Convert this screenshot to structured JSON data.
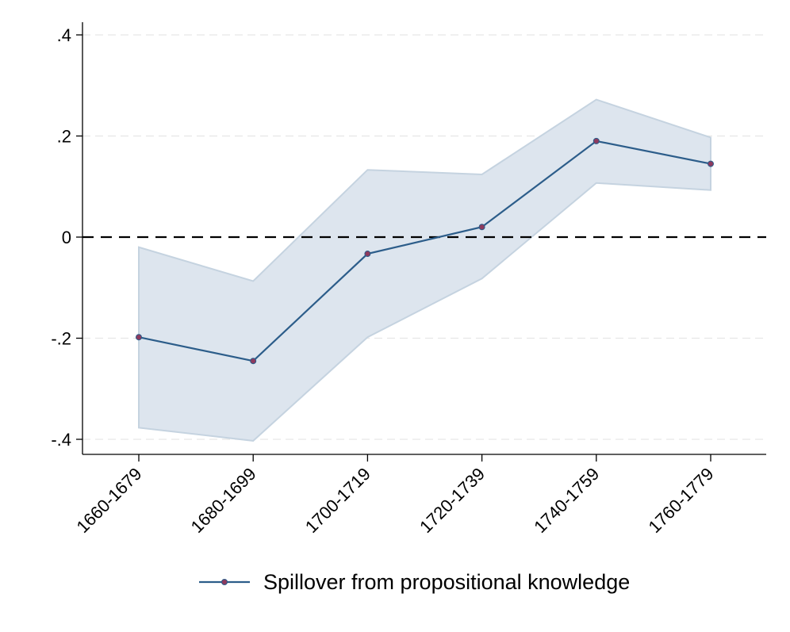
{
  "chart_data": {
    "type": "line",
    "title": "",
    "xlabel": "",
    "ylabel": "",
    "categories": [
      "1660-1679",
      "1680-1699",
      "1700-1719",
      "1720-1739",
      "1740-1759",
      "1760-1779"
    ],
    "series": [
      {
        "name": "Spillover from propositional knowledge",
        "values": [
          -0.198,
          -0.245,
          -0.033,
          0.02,
          0.19,
          0.145
        ],
        "ci_lower": [
          -0.377,
          -0.403,
          -0.198,
          -0.082,
          0.107,
          0.093
        ],
        "ci_upper": [
          -0.02,
          -0.087,
          0.133,
          0.124,
          0.272,
          0.197
        ],
        "line_color": "#2c5d8a",
        "marker_color": "#8e3a5e",
        "band_color": "#dde5ee"
      }
    ],
    "ylim": [
      -0.43,
      0.43
    ],
    "yticks": [
      {
        "value": 0.4,
        "label": ".4"
      },
      {
        "value": 0.2,
        "label": ".2"
      },
      {
        "value": 0,
        "label": "0"
      },
      {
        "value": -0.2,
        "label": "-.2"
      },
      {
        "value": -0.4,
        "label": "-.4"
      }
    ],
    "reference_line": 0,
    "grid": true,
    "legend_position": "bottom"
  }
}
